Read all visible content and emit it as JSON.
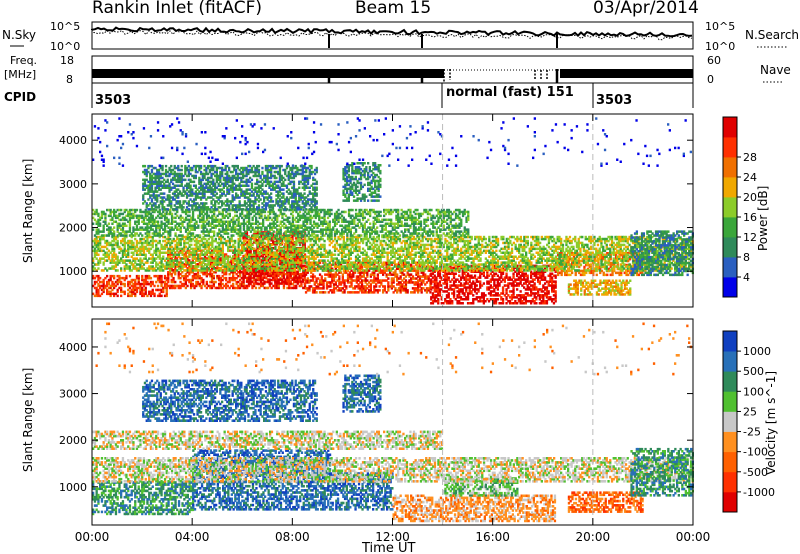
{
  "header": {
    "station": "Rankin Inlet (fitACF)",
    "beam": "Beam 15",
    "date": "03/Apr/2014"
  },
  "noise_panel": {
    "left_label": "N.Sky",
    "right_label": "N.Search",
    "left_ticks": [
      "10^5",
      "10^0"
    ],
    "right_ticks": [
      "10^5",
      "10^0"
    ]
  },
  "freq_panel": {
    "left_label_1": "Freq.",
    "left_label_2": "[MHz]",
    "right_label": "Nave",
    "left_ticks": [
      "18",
      "8"
    ],
    "right_ticks": [
      "60",
      "0"
    ]
  },
  "cpid_panel": {
    "label": "CPID",
    "segments": [
      {
        "text": "3503",
        "start_hour": 0.0
      },
      {
        "text": "normal (fast) 151",
        "start_hour": 14.0
      },
      {
        "text": "3503",
        "start_hour": 20.0
      }
    ]
  },
  "chart_data": [
    {
      "type": "heatmap",
      "title": "",
      "xlabel": "Time UT",
      "ylabel": "Slant Range [km]",
      "xlim_hours": [
        0,
        24
      ],
      "ylim": [
        180,
        4600
      ],
      "x_ticks": [
        "00:00",
        "04:00",
        "08:00",
        "12:00",
        "16:00",
        "20:00",
        "00:00"
      ],
      "y_ticks": [
        1000,
        2000,
        3000,
        4000
      ],
      "colorbar": {
        "label": "Power [dB]",
        "ticks": [
          "4",
          "8",
          "12",
          "16",
          "20",
          "24",
          "28"
        ],
        "colors": [
          "#0000e8",
          "#2a5fc0",
          "#2f8a5a",
          "#3aa63a",
          "#8ccc2a",
          "#f0a800",
          "#f07000",
          "#ff3000",
          "#e00000"
        ]
      },
      "cpid_boundaries_hours": [
        14.0,
        20.0
      ],
      "bands": [
        {
          "t0": 0.0,
          "t1": 3.0,
          "r0": 420,
          "r1": 900,
          "level": 7
        },
        {
          "t0": 3.0,
          "t1": 8.5,
          "r0": 600,
          "r1": 1500,
          "level": 7
        },
        {
          "t0": 6.0,
          "t1": 8.5,
          "r0": 700,
          "r1": 1900,
          "level": 8
        },
        {
          "t0": 8.5,
          "t1": 13.5,
          "r0": 500,
          "r1": 1200,
          "level": 7
        },
        {
          "t0": 13.5,
          "t1": 18.5,
          "r0": 250,
          "r1": 1150,
          "level": 8
        },
        {
          "t0": 18.5,
          "t1": 22.0,
          "r0": 900,
          "r1": 1400,
          "level": 6
        },
        {
          "t0": 19.0,
          "t1": 21.5,
          "r0": 450,
          "r1": 800,
          "level": 5
        },
        {
          "t0": 0.0,
          "t1": 24.0,
          "r0": 1000,
          "r1": 1800,
          "level": 4
        },
        {
          "t0": 0.0,
          "t1": 15.0,
          "r0": 1800,
          "r1": 2400,
          "level": 3
        },
        {
          "t0": 2.0,
          "t1": 9.0,
          "r0": 2400,
          "r1": 3400,
          "level": 2
        },
        {
          "t0": 10.0,
          "t1": 11.5,
          "r0": 2600,
          "r1": 3500,
          "level": 2
        },
        {
          "t0": 21.5,
          "t1": 24.0,
          "r0": 900,
          "r1": 1900,
          "level": 2
        },
        {
          "t0": 0.0,
          "t1": 24.0,
          "r0": 3400,
          "r1": 4500,
          "level": 0
        }
      ]
    },
    {
      "type": "heatmap",
      "title": "",
      "xlabel": "Time UT",
      "ylabel": "Slant Range [km]",
      "xlim_hours": [
        0,
        24
      ],
      "ylim": [
        180,
        4600
      ],
      "x_ticks": [
        "00:00",
        "04:00",
        "08:00",
        "12:00",
        "16:00",
        "20:00",
        "00:00"
      ],
      "y_ticks": [
        1000,
        2000,
        3000,
        4000
      ],
      "colorbar": {
        "label": "Velocity [m s^-1]",
        "ticks": [
          "1000",
          "500",
          "100",
          "25",
          "-25",
          "-100",
          "-500",
          "-1000"
        ],
        "colors": [
          "#1040c0",
          "#2870b8",
          "#2f8a5a",
          "#50c030",
          "#c8c8c8",
          "#ff9020",
          "#ff6000",
          "#ff3000",
          "#e00000"
        ]
      },
      "cpid_boundaries_hours": [
        14.0,
        20.0
      ],
      "bands": [
        {
          "t0": 0.0,
          "t1": 4.0,
          "r0": 400,
          "r1": 1100,
          "level": 2
        },
        {
          "t0": 4.0,
          "t1": 9.5,
          "r0": 500,
          "r1": 1800,
          "level": 1
        },
        {
          "t0": 9.5,
          "t1": 12.0,
          "r0": 500,
          "r1": 1300,
          "level": 1
        },
        {
          "t0": 12.0,
          "t1": 18.5,
          "r0": 250,
          "r1": 800,
          "level": 5
        },
        {
          "t0": 14.0,
          "t1": 17.0,
          "r0": 800,
          "r1": 1200,
          "level": 3
        },
        {
          "t0": 19.0,
          "t1": 22.0,
          "r0": 450,
          "r1": 900,
          "level": 6
        },
        {
          "t0": 0.0,
          "t1": 24.0,
          "r0": 1100,
          "r1": 1600,
          "level": 4
        },
        {
          "t0": 0.0,
          "t1": 14.0,
          "r0": 1800,
          "r1": 2200,
          "level": 4
        },
        {
          "t0": 2.0,
          "t1": 9.0,
          "r0": 2400,
          "r1": 3300,
          "level": 1
        },
        {
          "t0": 10.0,
          "t1": 11.5,
          "r0": 2600,
          "r1": 3400,
          "level": 1
        },
        {
          "t0": 21.5,
          "t1": 24.0,
          "r0": 800,
          "r1": 1800,
          "level": 2
        },
        {
          "t0": 0.0,
          "t1": 24.0,
          "r0": 3400,
          "r1": 4500,
          "level": 5
        }
      ]
    }
  ]
}
